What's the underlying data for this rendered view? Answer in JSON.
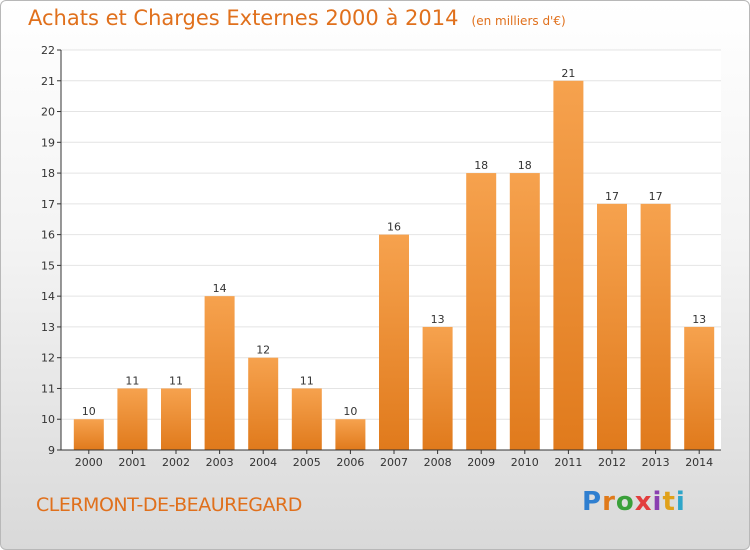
{
  "header": {
    "title": "Achats et Charges Externes 2000 à 2014",
    "unit": "(en milliers d'€)"
  },
  "footer": {
    "commune": "CLERMONT-DE-BEAUREGARD",
    "logo_letters": [
      "P",
      "r",
      "o",
      "x",
      "i",
      "t",
      "i"
    ],
    "logo_colors": [
      "#2f7fd0",
      "#e07a1a",
      "#3aa03a",
      "#e23d3d",
      "#8a3fb0",
      "#e0a11a",
      "#2fa6c9"
    ]
  },
  "colors": {
    "accent": "#e0701c",
    "bar_top": "#f6a24e",
    "bar_bottom": "#e07a1c",
    "axis": "#333333",
    "grid": "#e4e4e4"
  },
  "chart_data": {
    "type": "bar",
    "categories": [
      "2000",
      "2001",
      "2002",
      "2003",
      "2004",
      "2005",
      "2006",
      "2007",
      "2008",
      "2009",
      "2010",
      "2011",
      "2012",
      "2013",
      "2014"
    ],
    "values": [
      10,
      11,
      11,
      14,
      12,
      11,
      10,
      16,
      13,
      18,
      18,
      21,
      17,
      17,
      13
    ],
    "data_labels": [
      "10",
      "11",
      "11",
      "14",
      "12",
      "11",
      "10",
      "16",
      "13",
      "18",
      "18",
      "21",
      "17",
      "17",
      "13"
    ],
    "yticks": [
      "9",
      "10",
      "11",
      "12",
      "13",
      "14",
      "15",
      "16",
      "17",
      "18",
      "19",
      "20",
      "21",
      "22"
    ],
    "ylim": [
      9,
      22
    ],
    "grid": true
  }
}
